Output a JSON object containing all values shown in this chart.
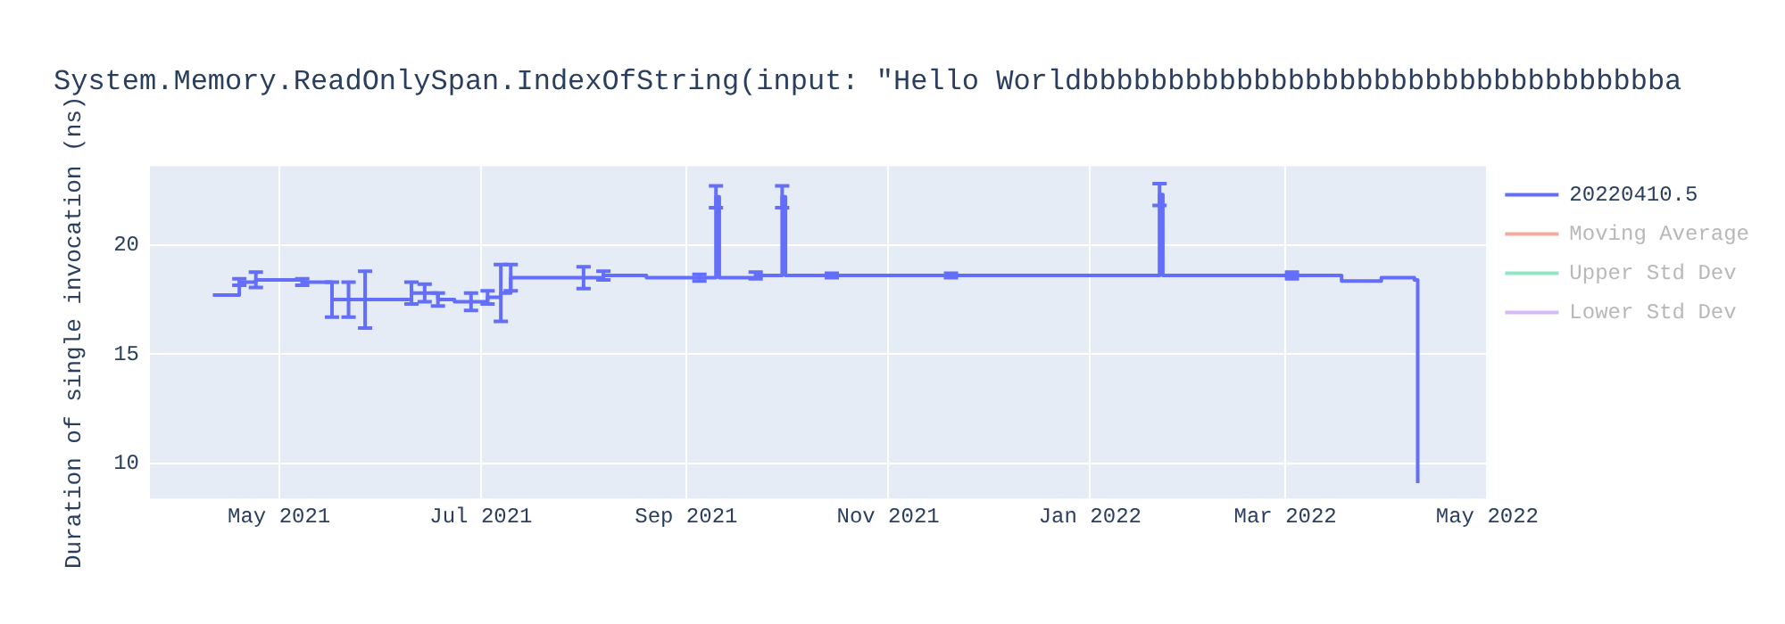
{
  "chart_data": {
    "type": "step",
    "title": "System.Memory.ReadOnlySpan.IndexOfString(input: \"Hello Worldbbbbbbbbbbbbbbbbbbbbbbbbbbbbbbbbbba",
    "ylabel": "Duration of single invocation (ns)",
    "x": [
      "2021-04-11",
      "2021-04-18",
      "2021-04-19",
      "2021-04-24",
      "2021-05-01",
      "2021-05-08",
      "2021-05-15",
      "2021-05-17",
      "2021-05-22",
      "2021-05-27",
      "2021-06-05",
      "2021-06-10",
      "2021-06-14",
      "2021-06-18",
      "2021-06-23",
      "2021-06-28",
      "2021-07-03",
      "2021-07-07",
      "2021-07-10",
      "2021-07-20",
      "2021-08-01",
      "2021-08-07",
      "2021-08-20",
      "2021-09-05",
      "2021-09-10",
      "2021-09-11",
      "2021-09-22",
      "2021-09-30",
      "2021-10-01",
      "2021-10-15",
      "2021-11-20",
      "2021-12-15",
      "2022-01-22",
      "2022-01-23",
      "2022-03-03",
      "2022-03-18",
      "2022-03-30",
      "2022-04-09",
      "2022-04-10"
    ],
    "series": [
      {
        "name": "20220410.5",
        "color": "#636efa",
        "values": [
          17.7,
          17.7,
          18.3,
          18.4,
          18.4,
          18.3,
          18.3,
          17.5,
          17.5,
          17.5,
          17.5,
          17.8,
          17.8,
          17.5,
          17.4,
          17.4,
          17.6,
          17.8,
          18.5,
          18.5,
          18.5,
          18.6,
          18.5,
          18.5,
          22.2,
          18.5,
          18.6,
          22.2,
          18.6,
          18.6,
          18.6,
          18.6,
          22.3,
          18.6,
          18.6,
          18.35,
          18.5,
          18.4,
          9.1
        ],
        "errors": [
          null,
          null,
          0.15,
          0.35,
          null,
          0.15,
          null,
          0.8,
          0.8,
          1.3,
          null,
          0.5,
          0.4,
          0.3,
          null,
          0.4,
          0.3,
          1.3,
          0.6,
          null,
          0.5,
          0.2,
          null,
          0.15,
          0.5,
          null,
          0.15,
          0.5,
          null,
          0.1,
          0.1,
          null,
          0.5,
          null,
          0.15,
          null,
          null,
          null,
          null
        ]
      },
      {
        "name": "Moving Average",
        "color": "#f4a99a",
        "values": [
          null,
          null,
          null,
          null,
          null,
          null,
          null,
          null,
          null,
          null,
          null,
          null,
          null,
          null,
          null,
          null,
          null,
          null,
          null,
          null,
          null,
          null,
          null,
          null,
          null,
          null,
          null,
          null,
          null,
          null,
          null,
          null,
          null,
          null,
          null,
          null,
          null,
          null,
          null
        ]
      },
      {
        "name": "Upper Std Dev",
        "color": "#8ee6c4",
        "values": [
          null,
          null,
          null,
          null,
          null,
          null,
          null,
          null,
          null,
          null,
          null,
          null,
          null,
          null,
          null,
          null,
          null,
          null,
          null,
          null,
          null,
          null,
          null,
          null,
          null,
          null,
          null,
          null,
          null,
          null,
          null,
          null,
          null,
          null,
          null,
          null,
          null,
          null,
          null
        ]
      },
      {
        "name": "Lower Std Dev",
        "color": "#d6b8fb",
        "values": [
          null,
          null,
          null,
          null,
          null,
          null,
          null,
          null,
          null,
          null,
          null,
          null,
          null,
          null,
          null,
          null,
          null,
          null,
          null,
          null,
          null,
          null,
          null,
          null,
          null,
          null,
          null,
          null,
          null,
          null,
          null,
          null,
          null,
          null,
          null,
          null,
          null,
          null,
          null
        ]
      }
    ],
    "xlim": [
      "2021-03-23",
      "2022-05-01"
    ],
    "xticks": [
      {
        "value": "2021-05-01",
        "label": "May 2021"
      },
      {
        "value": "2021-07-01",
        "label": "Jul 2021"
      },
      {
        "value": "2021-09-01",
        "label": "Sep 2021"
      },
      {
        "value": "2021-11-01",
        "label": "Nov 2021"
      },
      {
        "value": "2022-01-01",
        "label": "Jan 2022"
      },
      {
        "value": "2022-03-01",
        "label": "Mar 2022"
      },
      {
        "value": "2022-05-01",
        "label": "May 2022"
      }
    ],
    "ylim": [
      8.4,
      23.6
    ],
    "yticks": [
      10,
      15,
      20
    ],
    "grid": true,
    "legend": "top right",
    "marker": "none",
    "line_style": "solid"
  }
}
